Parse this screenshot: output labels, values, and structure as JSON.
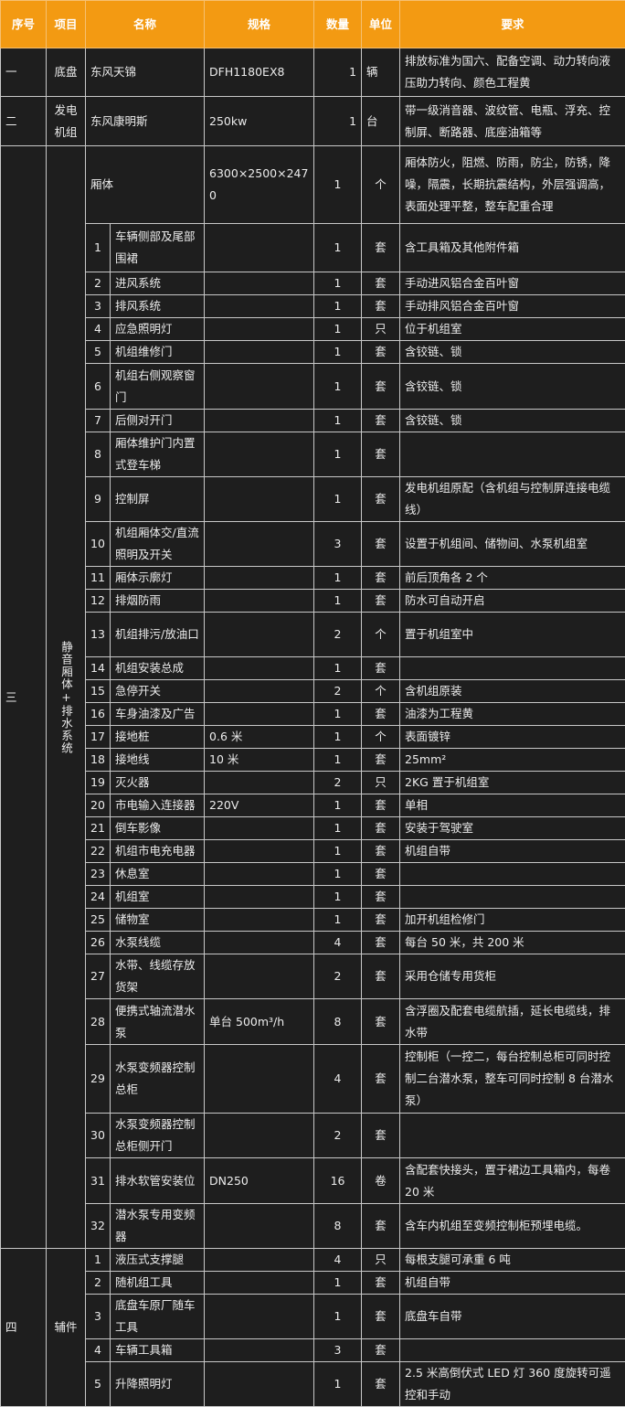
{
  "headers": [
    "序号",
    "项目",
    "名称",
    "规格",
    "数量",
    "单位",
    "要求"
  ],
  "colors": {
    "header_bg": "#f39a12",
    "body_bg": "#1e1e1e",
    "border": "#c8c8c8"
  },
  "sections": [
    {
      "no": "一",
      "item": "底盘",
      "rows": [
        {
          "name": "东风天锦",
          "spec": "DFH1180EX8",
          "qty": "1",
          "unit": "辆",
          "req": "排放标准为国六、配备空调、动力转向液压助力转向、颜色工程黄"
        }
      ]
    },
    {
      "no": "二",
      "item": "发电机组",
      "rows": [
        {
          "name": "东风康明斯",
          "spec": "250kw",
          "qty": "1",
          "unit": "台",
          "req": "带一级消音器、波纹管、电瓶、浮充、控制屏、断路器、底座油箱等"
        }
      ]
    },
    {
      "no": "三",
      "item": "静音厢体+排水系统",
      "rows": [
        {
          "name": "厢体",
          "spec": "6300×2500×2470",
          "qty": "1",
          "unit": "个",
          "req": "厢体防火，阻燃、防雨，防尘，防锈，降噪，隔震，长期抗震结构，外层强调高，表面处理平整，整车配重合理"
        },
        {
          "sub": "1",
          "name": "车辆侧部及尾部围裙",
          "spec": "",
          "qty": "1",
          "unit": "套",
          "req": "含工具箱及其他附件箱"
        },
        {
          "sub": "2",
          "name": "进风系统",
          "spec": "",
          "qty": "1",
          "unit": "套",
          "req": "手动进风铝合金百叶窗"
        },
        {
          "sub": "3",
          "name": "排风系统",
          "spec": "",
          "qty": "1",
          "unit": "套",
          "req": "手动排风铝合金百叶窗"
        },
        {
          "sub": "4",
          "name": "应急照明灯",
          "spec": "",
          "qty": "1",
          "unit": "只",
          "req": "位于机组室"
        },
        {
          "sub": "5",
          "name": "机组维修门",
          "spec": "",
          "qty": "1",
          "unit": "套",
          "req": "含铰链、锁"
        },
        {
          "sub": "6",
          "name": "机组右侧观察窗门",
          "spec": "",
          "qty": "1",
          "unit": "套",
          "req": "含铰链、锁"
        },
        {
          "sub": "7",
          "name": "后侧对开门",
          "spec": "",
          "qty": "1",
          "unit": "套",
          "req": "含铰链、锁"
        },
        {
          "sub": "8",
          "name": "厢体维护门内置式登车梯",
          "spec": "",
          "qty": "1",
          "unit": "套",
          "req": ""
        },
        {
          "sub": "9",
          "name": "控制屏",
          "spec": "",
          "qty": "1",
          "unit": "套",
          "req": "发电机组原配（含机组与控制屏连接电缆线）"
        },
        {
          "sub": "10",
          "name": "机组厢体交/直流照明及开关",
          "spec": "",
          "qty": "3",
          "unit": "套",
          "req": "设置于机组间、储物间、水泵机组室"
        },
        {
          "sub": "11",
          "name": "厢体示廓灯",
          "spec": "",
          "qty": "1",
          "unit": "套",
          "req": "前后顶角各 2 个"
        },
        {
          "sub": "12",
          "name": "排烟防雨",
          "spec": "",
          "qty": "1",
          "unit": "套",
          "req": "防水可自动开启"
        },
        {
          "sub": "13",
          "name": "机组排污/放油口",
          "spec": "",
          "qty": "2",
          "unit": "个",
          "req": "置于机组室中"
        },
        {
          "sub": "14",
          "name": "机组安装总成",
          "spec": "",
          "qty": "1",
          "unit": "套",
          "req": ""
        },
        {
          "sub": "15",
          "name": "急停开关",
          "spec": "",
          "qty": "2",
          "unit": "个",
          "req": "含机组原装"
        },
        {
          "sub": "16",
          "name": "车身油漆及广告",
          "spec": "",
          "qty": "1",
          "unit": "套",
          "req": "油漆为工程黄"
        },
        {
          "sub": "17",
          "name": "接地桩",
          "spec": "0.6 米",
          "qty": "1",
          "unit": "个",
          "req": "表面镀锌"
        },
        {
          "sub": "18",
          "name": "接地线",
          "spec": "10 米",
          "qty": "1",
          "unit": "套",
          "req": "25mm²"
        },
        {
          "sub": "19",
          "name": "灭火器",
          "spec": "",
          "qty": "2",
          "unit": "只",
          "req": "2KG 置于机组室"
        },
        {
          "sub": "20",
          "name": "市电输入连接器",
          "spec": "220V",
          "qty": "1",
          "unit": "套",
          "req": "单相"
        },
        {
          "sub": "21",
          "name": "倒车影像",
          "spec": "",
          "qty": "1",
          "unit": "套",
          "req": "安装于驾驶室"
        },
        {
          "sub": "22",
          "name": "机组市电充电器",
          "spec": "",
          "qty": "1",
          "unit": "套",
          "req": "机组自带"
        },
        {
          "sub": "23",
          "name": "休息室",
          "spec": "",
          "qty": "1",
          "unit": "套",
          "req": ""
        },
        {
          "sub": "24",
          "name": "机组室",
          "spec": "",
          "qty": "1",
          "unit": "套",
          "req": ""
        },
        {
          "sub": "25",
          "name": "储物室",
          "spec": "",
          "qty": "1",
          "unit": "套",
          "req": "加开机组检修门"
        },
        {
          "sub": "26",
          "name": "水泵线缆",
          "spec": "",
          "qty": "4",
          "unit": "套",
          "req": "每台 50 米，共 200 米"
        },
        {
          "sub": "27",
          "name": "水带、线缆存放货架",
          "spec": "",
          "qty": "2",
          "unit": "套",
          "req": "采用仓储专用货柜"
        },
        {
          "sub": "28",
          "name": "便携式轴流潜水泵",
          "spec": "单台 500m³/h",
          "qty": "8",
          "unit": "套",
          "req": "含浮圈及配套电缆航插，延长电缆线，排水带"
        },
        {
          "sub": "29",
          "name": "水泵变频器控制总柜",
          "spec": "",
          "qty": "4",
          "unit": "套",
          "req": "控制柜（一控二，每台控制总柜可同时控制二台潜水泵，整车可同时控制 8 台潜水泵）"
        },
        {
          "sub": "30",
          "name": "水泵变频器控制总柜侧开门",
          "spec": "",
          "qty": "2",
          "unit": "套",
          "req": ""
        },
        {
          "sub": "31",
          "name": "排水软管安装位",
          "spec": "DN250",
          "qty": "16",
          "unit": "卷",
          "req": "含配套快接头，置于裙边工具箱内，每卷 20 米"
        },
        {
          "sub": "32",
          "name": "潜水泵专用变频器",
          "spec": "",
          "qty": "8",
          "unit": "套",
          "req": "含车内机组至变频控制柜预埋电缆。"
        }
      ]
    },
    {
      "no": "四",
      "item": "辅件",
      "rows": [
        {
          "sub": "1",
          "name": "液压式支撑腿",
          "spec": "",
          "qty": "4",
          "unit": "只",
          "req": "每根支腿可承重 6 吨"
        },
        {
          "sub": "2",
          "name": "随机组工具",
          "spec": "",
          "qty": "1",
          "unit": "套",
          "req": "机组自带"
        },
        {
          "sub": "3",
          "name": "底盘车原厂随车工具",
          "spec": "",
          "qty": "1",
          "unit": "套",
          "req": "底盘车自带"
        },
        {
          "sub": "4",
          "name": "车辆工具箱",
          "spec": "",
          "qty": "3",
          "unit": "套",
          "req": ""
        },
        {
          "sub": "5",
          "name": "升降照明灯",
          "spec": "",
          "qty": "1",
          "unit": "套",
          "req": "2.5 米高倒伏式 LED 灯 360 度旋转可遥控和手动"
        }
      ]
    }
  ]
}
